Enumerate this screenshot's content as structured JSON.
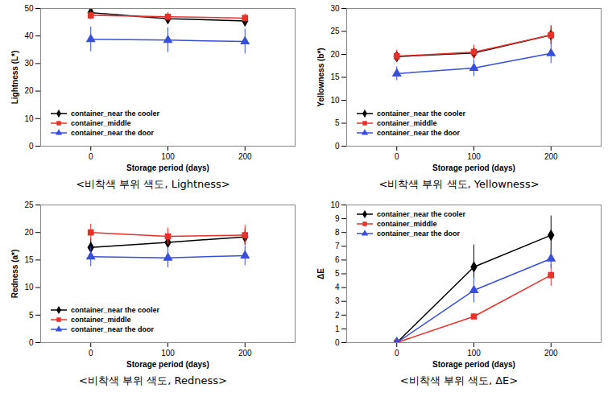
{
  "chart_data": [
    {
      "type": "line",
      "title": "<비착색 부위 색도, Lightness>",
      "x_label": "Storage period (days)",
      "y_label": "Lightness (L*)",
      "x": [
        0,
        100,
        200
      ],
      "xlim": [
        -65,
        265
      ],
      "xticks": [
        0,
        100,
        200
      ],
      "ylim": [
        0,
        50
      ],
      "yticks": [
        0,
        10,
        20,
        30,
        40,
        50
      ],
      "grid": false,
      "legend": "lower left",
      "series": [
        {
          "name": "container_near the cooler",
          "color": "#000000",
          "marker": "diamond",
          "values": [
            48.5,
            46.3,
            45.5
          ],
          "errors": [
            1.5,
            1.5,
            1.5
          ]
        },
        {
          "name": "container_middle",
          "color": "#e8312a",
          "marker": "square",
          "values": [
            47.5,
            47.0,
            46.5
          ],
          "errors": [
            1.5,
            1.5,
            1.5
          ]
        },
        {
          "name": "container_near the door",
          "color": "#3a4fd8",
          "marker": "triangle",
          "values": [
            38.8,
            38.5,
            38.0
          ],
          "errors": [
            4.5,
            4.5,
            4.5
          ]
        }
      ]
    },
    {
      "type": "line",
      "title": "<비착색 부위 색도, Yellowness>",
      "x_label": "Storage period (days)",
      "y_label": "Yellowness (b*)",
      "x": [
        0,
        100,
        200
      ],
      "xlim": [
        -65,
        265
      ],
      "xticks": [
        0,
        100,
        200
      ],
      "ylim": [
        0,
        30
      ],
      "yticks": [
        0,
        5,
        10,
        15,
        20,
        25,
        30
      ],
      "grid": false,
      "legend": "lower left",
      "series": [
        {
          "name": "container_near the cooler",
          "color": "#000000",
          "marker": "diamond",
          "values": [
            19.5,
            20.3,
            24.2
          ],
          "errors": [
            1.0,
            1.2,
            2.0
          ]
        },
        {
          "name": "container_middle",
          "color": "#e8312a",
          "marker": "square",
          "values": [
            19.6,
            20.5,
            24.2
          ],
          "errors": [
            1.3,
            1.5,
            2.0
          ]
        },
        {
          "name": "container_near the door",
          "color": "#3a4fd8",
          "marker": "triangle",
          "values": [
            15.8,
            17.0,
            20.2
          ],
          "errors": [
            1.5,
            1.8,
            2.2
          ]
        }
      ]
    },
    {
      "type": "line",
      "title": "<비착색 부위 색도, Redness>",
      "x_label": "Storage period (days)",
      "y_label": "Redness (a*)",
      "x": [
        0,
        100,
        200
      ],
      "xlim": [
        -65,
        265
      ],
      "xticks": [
        0,
        100,
        200
      ],
      "ylim": [
        0,
        25
      ],
      "yticks": [
        0,
        5,
        10,
        15,
        20,
        25
      ],
      "grid": false,
      "legend": "lower left",
      "series": [
        {
          "name": "container_near the cooler",
          "color": "#000000",
          "marker": "diamond",
          "values": [
            17.3,
            18.2,
            19.2
          ],
          "errors": [
            1.5,
            1.5,
            1.5
          ]
        },
        {
          "name": "container_middle",
          "color": "#e8312a",
          "marker": "square",
          "values": [
            20.0,
            19.3,
            19.5
          ],
          "errors": [
            1.5,
            1.5,
            1.8
          ]
        },
        {
          "name": "container_near the door",
          "color": "#3a4fd8",
          "marker": "triangle",
          "values": [
            15.6,
            15.4,
            15.8
          ],
          "errors": [
            1.8,
            1.8,
            1.8
          ]
        }
      ]
    },
    {
      "type": "line",
      "title": "<비착색 부위 색도, ΔE>",
      "x_label": "Storage period (days)",
      "y_label": "ΔE",
      "x": [
        0,
        100,
        200
      ],
      "xlim": [
        -65,
        265
      ],
      "xticks": [
        0,
        100,
        200
      ],
      "ylim": [
        0,
        10
      ],
      "yticks": [
        0,
        1,
        2,
        3,
        4,
        5,
        6,
        7,
        8,
        9,
        10
      ],
      "grid": false,
      "legend": "upper left",
      "series": [
        {
          "name": "container_near the cooler",
          "color": "#000000",
          "marker": "diamond",
          "values": [
            0,
            5.5,
            7.8
          ],
          "errors": [
            0,
            1.6,
            1.4
          ]
        },
        {
          "name": "container_middle",
          "color": "#e8312a",
          "marker": "square",
          "values": [
            0,
            1.9,
            4.9
          ],
          "errors": [
            0,
            0.2,
            0.8
          ]
        },
        {
          "name": "container_near the door",
          "color": "#3a4fd8",
          "marker": "triangle",
          "values": [
            0,
            3.8,
            6.1
          ],
          "errors": [
            0,
            0.9,
            0.7
          ]
        }
      ]
    }
  ]
}
